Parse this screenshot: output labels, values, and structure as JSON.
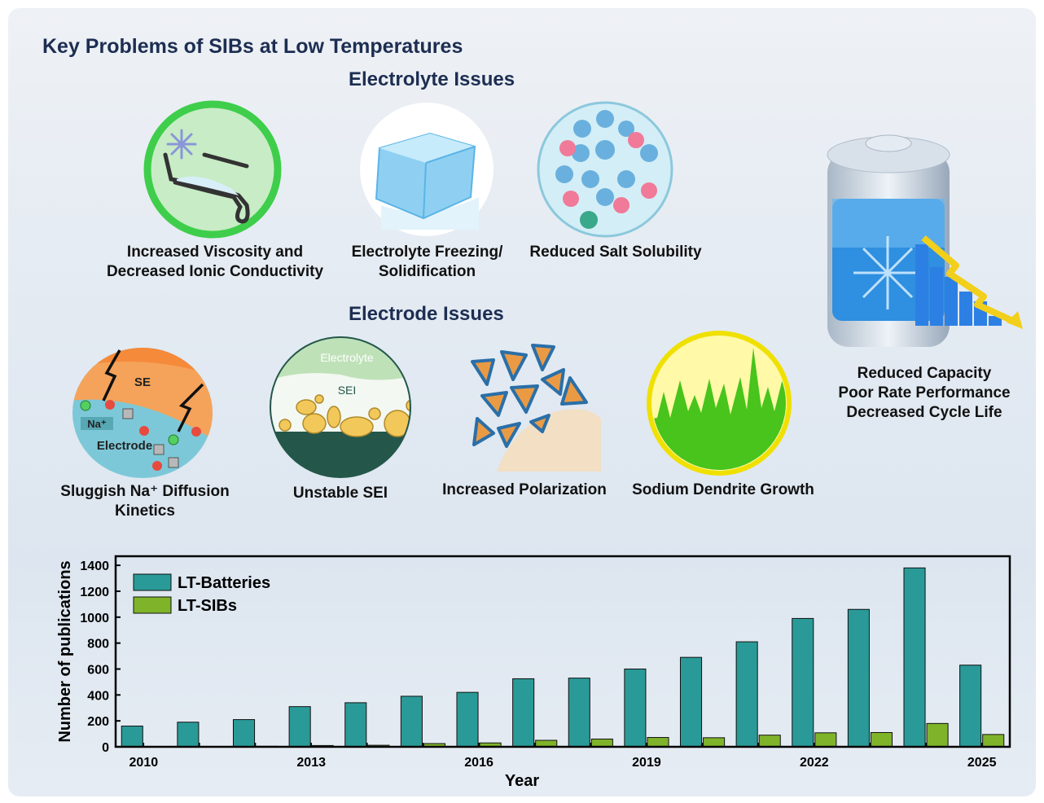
{
  "title": "Key Problems of SIBs at Low Temperatures",
  "electrolyte": {
    "heading": "Electrolyte Issues",
    "items": [
      {
        "line1": "Increased Viscosity and",
        "line2": "Decreased Ionic Conductivity"
      },
      {
        "line1": "Electrolyte Freezing/",
        "line2": "Solidification"
      },
      {
        "line1": "Reduced Salt Solubility",
        "line2": ""
      }
    ]
  },
  "electrode": {
    "heading": "Electrode Issues",
    "items": [
      {
        "line1": "Sluggish Na⁺ Diffusion",
        "line2": "Kinetics"
      },
      {
        "line1": "Unstable SEI",
        "line2": ""
      },
      {
        "line1": "Increased Polarization",
        "line2": ""
      },
      {
        "line1": "Sodium Dendrite Growth",
        "line2": ""
      }
    ],
    "diffusion_labels": {
      "se": "SE",
      "na": "Na⁺",
      "electrode": "Electrode"
    },
    "sei_labels": {
      "electrolyte": "Electrolyte",
      "sei": "SEI"
    }
  },
  "battery": {
    "line1": "Reduced Capacity",
    "line2": "Poor Rate Performance",
    "line3": "Decreased Cycle Life"
  },
  "colors": {
    "lt_batteries": "#2a9a98",
    "lt_sibs": "#7fb42a",
    "heading": "#1d2e52"
  },
  "chart_data": {
    "type": "bar",
    "xlabel": "Year",
    "ylabel": "Number of publications",
    "ylim": [
      0,
      1400
    ],
    "yticks": [
      0,
      200,
      400,
      600,
      800,
      1000,
      1200,
      1400
    ],
    "categories": [
      "2010",
      "2011",
      "2012",
      "2013",
      "2014",
      "2015",
      "2016",
      "2017",
      "2018",
      "2019",
      "2020",
      "2021",
      "2022",
      "2023",
      "2024",
      "2025"
    ],
    "xtick_labels": [
      "2010",
      "2013",
      "2016",
      "2019",
      "2022",
      "2025"
    ],
    "legend_position": "top-left",
    "series": [
      {
        "name": "LT-Batteries",
        "values": [
          160,
          190,
          210,
          310,
          340,
          390,
          420,
          525,
          530,
          600,
          690,
          810,
          990,
          1060,
          1380,
          630
        ]
      },
      {
        "name": "LT-SIBs",
        "values": [
          2,
          3,
          4,
          10,
          12,
          25,
          30,
          50,
          60,
          72,
          70,
          90,
          108,
          110,
          180,
          95
        ]
      }
    ]
  }
}
